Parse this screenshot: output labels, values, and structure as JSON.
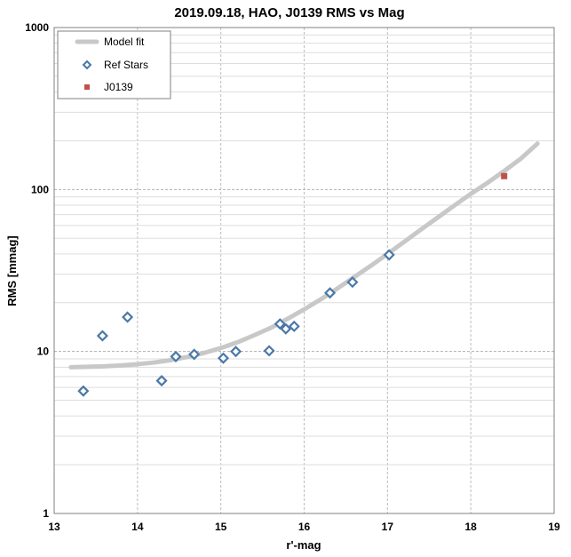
{
  "chart_data": {
    "type": "scatter",
    "title": "2019.09.18, HAO, J0139 RMS vs Mag",
    "xlabel": "r'-mag",
    "ylabel": "RMS [mmag]",
    "xlim": [
      13,
      19
    ],
    "ylim": [
      1,
      1000
    ],
    "yscale": "log",
    "x_ticks": [
      "13",
      "14",
      "15",
      "16",
      "17",
      "18",
      "19"
    ],
    "y_ticks": [
      "1",
      "10",
      "100",
      "1000"
    ],
    "grid": true,
    "legend_position": "top-left",
    "series": [
      {
        "name": "Model fit",
        "kind": "line",
        "color": "#c8c8c8",
        "x": [
          13.2,
          13.4,
          13.6,
          13.8,
          14.0,
          14.2,
          14.4,
          14.6,
          14.8,
          15.0,
          15.2,
          15.4,
          15.6,
          15.8,
          16.0,
          16.2,
          16.4,
          16.6,
          16.8,
          17.0,
          17.2,
          17.4,
          17.6,
          17.8,
          18.0,
          18.2,
          18.4,
          18.6,
          18.8
        ],
        "y": [
          8.0,
          8.05,
          8.1,
          8.2,
          8.35,
          8.55,
          8.85,
          9.25,
          9.8,
          10.5,
          11.4,
          12.6,
          14.0,
          15.9,
          18.2,
          21.0,
          24.5,
          28.8,
          33.8,
          40.0,
          47.5,
          56.5,
          67.0,
          79.5,
          94.0,
          110.0,
          130.0,
          155.0,
          192.0
        ]
      },
      {
        "name": "Ref Stars",
        "kind": "marker",
        "marker": "diamond",
        "color": "#4a78a8",
        "x": [
          13.35,
          13.58,
          13.88,
          14.29,
          14.46,
          14.68,
          15.03,
          15.18,
          15.58,
          15.71,
          15.78,
          15.88,
          16.31,
          16.58,
          17.02
        ],
        "y": [
          5.7,
          12.5,
          16.3,
          6.6,
          9.3,
          9.6,
          9.1,
          10.0,
          10.1,
          14.8,
          13.8,
          14.3,
          23.0,
          26.8,
          39.5
        ]
      },
      {
        "name": "J0139",
        "kind": "marker",
        "marker": "square",
        "color": "#c0504d",
        "x": [
          18.4
        ],
        "y": [
          121
        ]
      }
    ]
  }
}
